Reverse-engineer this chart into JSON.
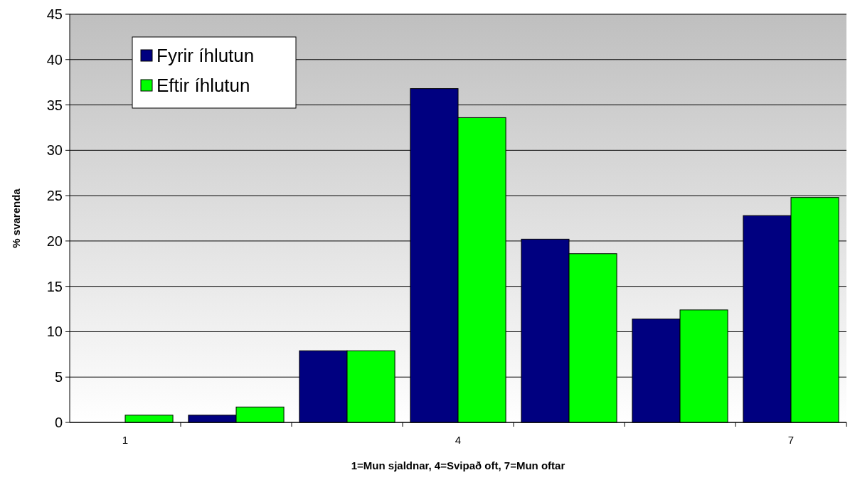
{
  "chart_data": {
    "type": "bar",
    "xlabel": "1=Mun sjaldnar, 4=Svipað oft, 7=Mun oftar",
    "ylabel": "% svarenda",
    "categories": [
      "1",
      null,
      null,
      "4",
      null,
      null,
      "7"
    ],
    "series": [
      {
        "name": "Fyrir íhlutun",
        "color": "#000080",
        "values": [
          0,
          0.8,
          7.9,
          36.8,
          20.2,
          11.4,
          22.8
        ]
      },
      {
        "name": "Eftir íhlutun",
        "color": "#00ff00",
        "values": [
          0.8,
          1.7,
          7.9,
          33.6,
          18.6,
          12.4,
          24.8
        ]
      }
    ],
    "ylim": [
      0,
      45
    ],
    "yticks": [
      0,
      5,
      10,
      15,
      20,
      25,
      30,
      35,
      40,
      45
    ],
    "grid": "y",
    "legend": "top left"
  }
}
